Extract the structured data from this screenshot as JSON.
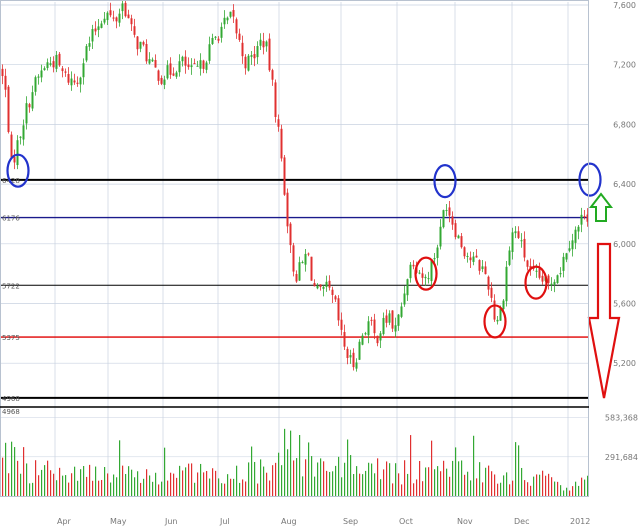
{
  "chart_data": {
    "type": "candlestick",
    "colors": {
      "up": "#33a833",
      "down": "#e03030",
      "grid": "#c8d2e0",
      "resistance": "#000000",
      "support_red": "#e00000",
      "blue_line": "#1a1a8c",
      "marker_blue": "#2233cc",
      "marker_red": "#e01010",
      "arrow_up": "#22aa22",
      "arrow_down": "#e01010"
    },
    "price_axis": {
      "labels": [
        "7,600",
        "7,200",
        "6,800",
        "6,400",
        "6,000",
        "5,600",
        "5,200"
      ],
      "values": [
        7600,
        7200,
        6800,
        6400,
        6000,
        5600,
        5200
      ],
      "range": [
        4920,
        7620
      ]
    },
    "volume_axis": {
      "labels": [
        "583,368",
        "291,684"
      ],
      "values": [
        583368,
        291684
      ],
      "range": [
        0,
        640000
      ]
    },
    "month_labels": [
      "Apr",
      "May",
      "Jun",
      "Jul",
      "Aug",
      "Sep",
      "Oct",
      "Nov",
      "Dec",
      "2012"
    ],
    "levels": [
      {
        "label": "6428",
        "value": 6428,
        "color_key": "resistance"
      },
      {
        "label": "6176",
        "value": 6176,
        "color_key": "blue_line"
      },
      {
        "label": "5722",
        "value": 5722,
        "color_key": "resistance"
      },
      {
        "label": "5375",
        "value": 5375,
        "color_key": "support_red"
      },
      {
        "label": "4968",
        "value": 4968,
        "color_key": "resistance"
      }
    ],
    "volume_top_label": "4968",
    "keypoints": [
      [
        0,
        7180
      ],
      [
        6,
        6980
      ],
      [
        11,
        6520
      ],
      [
        16,
        6640
      ],
      [
        24,
        6860
      ],
      [
        33,
        7050
      ],
      [
        45,
        7200
      ],
      [
        55,
        7230
      ],
      [
        64,
        7120
      ],
      [
        76,
        7080
      ],
      [
        86,
        7300
      ],
      [
        96,
        7450
      ],
      [
        105,
        7560
      ],
      [
        114,
        7480
      ],
      [
        123,
        7620
      ],
      [
        133,
        7380
      ],
      [
        143,
        7300
      ],
      [
        152,
        7180
      ],
      [
        161,
        7120
      ],
      [
        171,
        7160
      ],
      [
        181,
        7220
      ],
      [
        191,
        7150
      ],
      [
        200,
        7180
      ],
      [
        210,
        7320
      ],
      [
        221,
        7450
      ],
      [
        232,
        7520
      ],
      [
        240,
        7320
      ],
      [
        246,
        7200
      ],
      [
        255,
        7280
      ],
      [
        262,
        7380
      ],
      [
        267,
        7280
      ],
      [
        272,
        7050
      ],
      [
        279,
        6700
      ],
      [
        285,
        6300
      ],
      [
        290,
        5950
      ],
      [
        295,
        5780
      ],
      [
        301,
        5850
      ],
      [
        307,
        5950
      ],
      [
        313,
        5720
      ],
      [
        319,
        5650
      ],
      [
        327,
        5700
      ],
      [
        335,
        5580
      ],
      [
        341,
        5380
      ],
      [
        346,
        5270
      ],
      [
        352,
        5180
      ],
      [
        358,
        5300
      ],
      [
        363,
        5420
      ],
      [
        369,
        5480
      ],
      [
        375,
        5360
      ],
      [
        381,
        5440
      ],
      [
        389,
        5520
      ],
      [
        394,
        5400
      ],
      [
        400,
        5550
      ],
      [
        407,
        5800
      ],
      [
        413,
        5900
      ],
      [
        419,
        5820
      ],
      [
        425,
        5760
      ],
      [
        433,
        5900
      ],
      [
        440,
        6080
      ],
      [
        445,
        6300
      ],
      [
        449,
        6210
      ],
      [
        455,
        6100
      ],
      [
        462,
        5980
      ],
      [
        470,
        5900
      ],
      [
        478,
        5860
      ],
      [
        484,
        5820
      ],
      [
        490,
        5680
      ],
      [
        495,
        5480
      ],
      [
        501,
        5560
      ],
      [
        507,
        5900
      ],
      [
        513,
        6100
      ],
      [
        518,
        6050
      ],
      [
        524,
        5920
      ],
      [
        530,
        5800
      ],
      [
        536,
        5770
      ],
      [
        542,
        5760
      ],
      [
        548,
        5720
      ],
      [
        555,
        5800
      ],
      [
        561,
        5850
      ],
      [
        567,
        6000
      ],
      [
        573,
        6060
      ],
      [
        579,
        6120
      ],
      [
        585,
        6240
      ],
      [
        588,
        6180
      ]
    ],
    "volume_profile": [
      [
        0,
        0.45
      ],
      [
        8,
        0.5
      ],
      [
        20,
        0.35
      ],
      [
        35,
        0.3
      ],
      [
        60,
        0.28
      ],
      [
        90,
        0.25
      ],
      [
        110,
        0.3
      ],
      [
        130,
        0.28
      ],
      [
        160,
        0.26
      ],
      [
        200,
        0.28
      ],
      [
        230,
        0.3
      ],
      [
        255,
        0.28
      ],
      [
        268,
        0.35
      ],
      [
        280,
        0.55
      ],
      [
        292,
        0.65
      ],
      [
        305,
        0.45
      ],
      [
        320,
        0.35
      ],
      [
        345,
        0.4
      ],
      [
        370,
        0.32
      ],
      [
        395,
        0.3
      ],
      [
        420,
        0.28
      ],
      [
        450,
        0.3
      ],
      [
        480,
        0.28
      ],
      [
        500,
        0.22
      ],
      [
        520,
        0.25
      ],
      [
        545,
        0.2
      ],
      [
        560,
        0.12
      ],
      [
        575,
        0.14
      ],
      [
        588,
        0.2
      ]
    ],
    "markers": [
      {
        "shape": "circle",
        "color_key": "marker_blue",
        "x": 18,
        "price": 6490
      },
      {
        "shape": "circle",
        "color_key": "marker_blue",
        "x": 445,
        "price": 6420
      },
      {
        "shape": "circle",
        "color_key": "marker_blue",
        "x": 590,
        "price": 6430
      },
      {
        "shape": "circle",
        "color_key": "marker_red",
        "x": 426,
        "price": 5800
      },
      {
        "shape": "circle",
        "color_key": "marker_red",
        "x": 495,
        "price": 5480
      },
      {
        "shape": "circle",
        "color_key": "marker_red",
        "x": 536,
        "price": 5740
      }
    ],
    "arrows": [
      {
        "direction": "up",
        "color_key": "arrow_up"
      },
      {
        "direction": "down",
        "color_key": "arrow_down"
      }
    ],
    "grid": true,
    "legend": "none"
  }
}
